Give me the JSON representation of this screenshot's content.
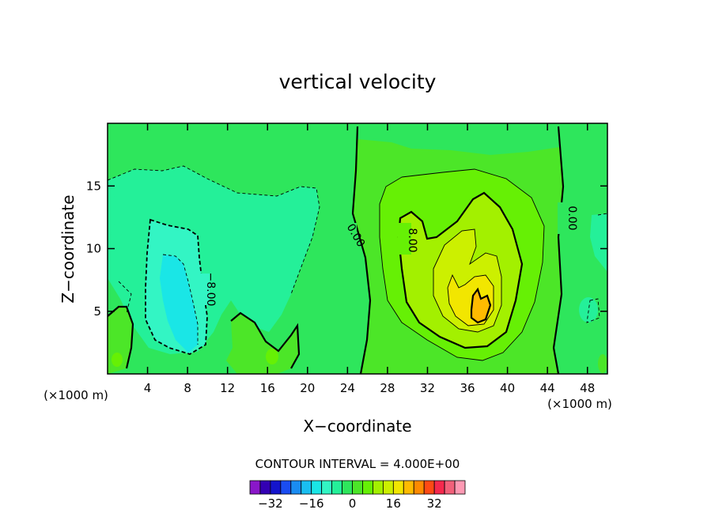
{
  "chart_data": {
    "type": "contour",
    "title": "vertical velocity",
    "xlabel": "X−coordinate",
    "ylabel": "Z−coordinate",
    "x_unit_left": "(×1000 m)",
    "x_unit_right": "(×1000 m)",
    "xlim": [
      0,
      50
    ],
    "ylim": [
      0,
      20
    ],
    "x_ticks": [
      4,
      8,
      12,
      16,
      20,
      24,
      28,
      32,
      36,
      40,
      44,
      48
    ],
    "y_ticks": [
      5,
      10,
      15
    ],
    "contour_interval_text": "CONTOUR INTERVAL = 4.000E+00",
    "contour_interval": 4,
    "contour_labels": [
      "−8.00",
      "0.00",
      "8.00",
      "0.00"
    ],
    "colorbar": {
      "levels": [
        -36,
        -32,
        -28,
        -24,
        -20,
        -16,
        -12,
        -8,
        -4,
        0,
        4,
        8,
        12,
        16,
        20,
        24,
        28,
        32,
        36
      ],
      "tick_labels": [
        "−32",
        "−16",
        "0",
        "16",
        "32"
      ],
      "colors": [
        "#8a17c9",
        "#3300b3",
        "#1414cc",
        "#1a4df2",
        "#1a8cf2",
        "#1abef0",
        "#1ae6e6",
        "#33f5c4",
        "#24f099",
        "#2ee65c",
        "#4ce628",
        "#66f005",
        "#a3f000",
        "#ccf000",
        "#f2e600",
        "#ffbb00",
        "#ff8a00",
        "#ff4a14",
        "#f5284d",
        "#f2607a",
        "#ff9ab4"
      ]
    },
    "features": [
      {
        "type": "downdraft",
        "center": [
          7,
          7
        ],
        "peak": -14
      },
      {
        "type": "updraft",
        "center": [
          36,
          6
        ],
        "peak": 22
      }
    ]
  }
}
